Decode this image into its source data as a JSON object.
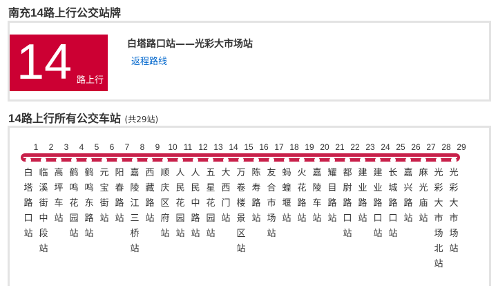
{
  "page_title": {
    "prefix": "南充",
    "num": "14",
    "suffix": "路上行公交站牌"
  },
  "badge": {
    "num": "14",
    "sub": "路上行"
  },
  "route": "白塔路口站——光彩大市场站",
  "return_link": "返程路线",
  "section": {
    "num": "14",
    "title": "路上行所有公交车站",
    "count": "(共29站)"
  },
  "line_color": "#c8204a",
  "stations": [
    "白塔路口站",
    "临溪街中段站",
    "高坪车站",
    "鹤鸣花园站",
    "鹤鸣东路站",
    "元宝街站",
    "阳春路站",
    "嘉陵江三桥站",
    "西藏路站",
    "顺庆区府站",
    "人民花园站",
    "人民中路站",
    "五星花园站",
    "大西门站",
    "万卷楼景区站",
    "陈寿路站",
    "友合市场站",
    "蚂蝗堰站",
    "火花路站",
    "嘉陵车站",
    "耀目路站",
    "都尉路口站",
    "建业路站",
    "建业路口站",
    "长城路口站",
    "嘉兴路站",
    "麻光庙站",
    "光彩大市场北站",
    "光彩大市场站"
  ]
}
